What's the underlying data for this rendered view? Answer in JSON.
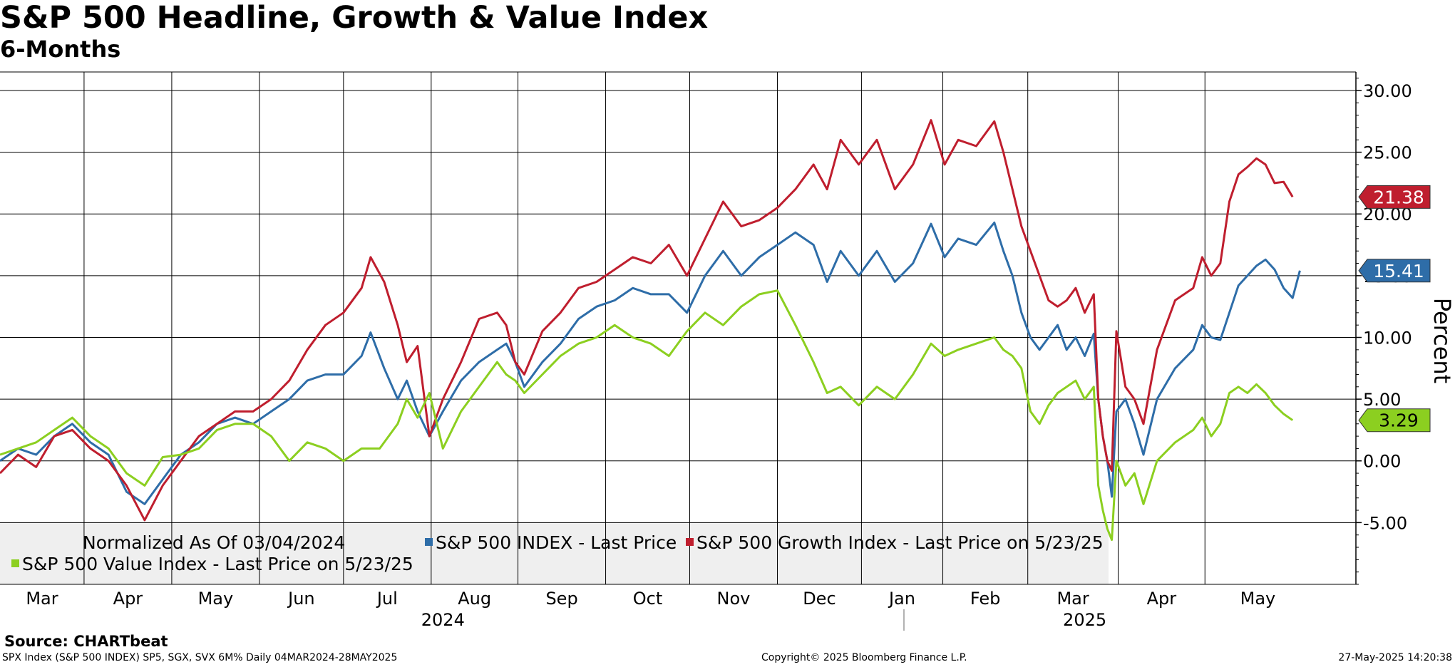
{
  "header": {
    "title": "S&P 500 Headline, Growth & Value Index",
    "subtitle": "6-Months"
  },
  "chart_data": {
    "type": "line",
    "ylabel": "Percent",
    "ylim": [
      -10,
      31.5
    ],
    "y_ticks": [
      30,
      25,
      20,
      15,
      10,
      5,
      0,
      -5
    ],
    "y_tick_labels": [
      "30.00",
      "25.00",
      "20.00",
      "15.00",
      "10.00",
      "5.00",
      "0.00",
      "-5.00"
    ],
    "grid": true,
    "x_range": [
      0,
      15
    ],
    "months": [
      {
        "label": "Mar",
        "start": 0
      },
      {
        "label": "Apr",
        "start": 0.93
      },
      {
        "label": "May",
        "start": 1.9
      },
      {
        "label": "Jun",
        "start": 2.87
      },
      {
        "label": "Jul",
        "start": 3.8
      },
      {
        "label": "Aug",
        "start": 4.77
      },
      {
        "label": "Sep",
        "start": 5.73
      },
      {
        "label": "Oct",
        "start": 6.7
      },
      {
        "label": "Nov",
        "start": 7.63
      },
      {
        "label": "Dec",
        "start": 8.6
      },
      {
        "label": "Jan",
        "start": 9.53
      },
      {
        "label": "Feb",
        "start": 10.43
      },
      {
        "label": "Mar",
        "start": 11.37
      },
      {
        "label": "Apr",
        "start": 12.37
      },
      {
        "label": "May",
        "start": 13.33
      }
    ],
    "years": [
      {
        "label": "2024",
        "x": 4.9
      },
      {
        "label": "2025",
        "x": 12.0
      }
    ],
    "year_divider_x": 10.0,
    "legend": {
      "note": "Normalized As Of 03/04/2024",
      "placement": "bottom-left"
    },
    "series": [
      {
        "name": "S&P 500 INDEX - Last Price",
        "color": "#2e6da8",
        "last_label": "15.41",
        "points": [
          [
            0,
            0
          ],
          [
            0.2,
            1
          ],
          [
            0.4,
            0.5
          ],
          [
            0.6,
            2
          ],
          [
            0.8,
            3
          ],
          [
            1.0,
            1.5
          ],
          [
            1.2,
            0.5
          ],
          [
            1.4,
            -2.5
          ],
          [
            1.6,
            -3.5
          ],
          [
            1.8,
            -1.5
          ],
          [
            2.0,
            0.5
          ],
          [
            2.2,
            1.5
          ],
          [
            2.4,
            3
          ],
          [
            2.6,
            3.5
          ],
          [
            2.8,
            3
          ],
          [
            3.0,
            4
          ],
          [
            3.2,
            5
          ],
          [
            3.4,
            6.5
          ],
          [
            3.6,
            7
          ],
          [
            3.8,
            7
          ],
          [
            4.0,
            8.5
          ],
          [
            4.1,
            10.4
          ],
          [
            4.25,
            7.5
          ],
          [
            4.4,
            5
          ],
          [
            4.5,
            6.5
          ],
          [
            4.62,
            4
          ],
          [
            4.75,
            2
          ],
          [
            4.9,
            4
          ],
          [
            5.1,
            6.5
          ],
          [
            5.3,
            8
          ],
          [
            5.5,
            9
          ],
          [
            5.6,
            9.5
          ],
          [
            5.7,
            8
          ],
          [
            5.8,
            6
          ],
          [
            6.0,
            8
          ],
          [
            6.2,
            9.5
          ],
          [
            6.4,
            11.5
          ],
          [
            6.6,
            12.5
          ],
          [
            6.8,
            13
          ],
          [
            7.0,
            14
          ],
          [
            7.2,
            13.5
          ],
          [
            7.4,
            13.5
          ],
          [
            7.6,
            12
          ],
          [
            7.8,
            15
          ],
          [
            8.0,
            17
          ],
          [
            8.2,
            15
          ],
          [
            8.4,
            16.5
          ],
          [
            8.6,
            17.5
          ],
          [
            8.8,
            18.5
          ],
          [
            9.0,
            17.5
          ],
          [
            9.15,
            14.5
          ],
          [
            9.3,
            17
          ],
          [
            9.5,
            15
          ],
          [
            9.7,
            17
          ],
          [
            9.9,
            14.5
          ],
          [
            10.1,
            16
          ],
          [
            10.3,
            19.2
          ],
          [
            10.45,
            16.5
          ],
          [
            10.6,
            18
          ],
          [
            10.8,
            17.5
          ],
          [
            11.0,
            19.3
          ],
          [
            11.1,
            17
          ],
          [
            11.2,
            15
          ],
          [
            11.3,
            12
          ],
          [
            11.4,
            10
          ],
          [
            11.5,
            9
          ],
          [
            11.6,
            10
          ],
          [
            11.7,
            11
          ],
          [
            11.8,
            9
          ],
          [
            11.9,
            10
          ],
          [
            12.0,
            8.5
          ],
          [
            12.1,
            10.3
          ],
          [
            12.15,
            5
          ],
          [
            12.2,
            2
          ],
          [
            12.25,
            0
          ],
          [
            12.3,
            -2.9
          ],
          [
            12.35,
            4
          ],
          [
            12.45,
            5
          ],
          [
            12.55,
            3
          ],
          [
            12.65,
            0.5
          ],
          [
            12.8,
            5
          ],
          [
            13.0,
            7.5
          ],
          [
            13.2,
            9
          ],
          [
            13.3,
            11
          ],
          [
            13.4,
            10
          ],
          [
            13.5,
            9.8
          ],
          [
            13.6,
            12
          ],
          [
            13.7,
            14.2
          ],
          [
            13.8,
            15
          ],
          [
            13.9,
            15.8
          ],
          [
            14.0,
            16.3
          ],
          [
            14.1,
            15.5
          ],
          [
            14.2,
            14
          ],
          [
            14.3,
            13.2
          ],
          [
            14.38,
            15.41
          ]
        ]
      },
      {
        "name": "S&P 500 Growth Index - Last Price on 5/23/25",
        "color": "#bf1e2e",
        "last_label": "21.38",
        "points": [
          [
            0,
            -1
          ],
          [
            0.2,
            0.5
          ],
          [
            0.4,
            -0.5
          ],
          [
            0.6,
            2
          ],
          [
            0.8,
            2.5
          ],
          [
            1.0,
            1
          ],
          [
            1.2,
            0
          ],
          [
            1.4,
            -2
          ],
          [
            1.6,
            -4.8
          ],
          [
            1.8,
            -2
          ],
          [
            2.0,
            0
          ],
          [
            2.2,
            2
          ],
          [
            2.4,
            3
          ],
          [
            2.6,
            4
          ],
          [
            2.8,
            4
          ],
          [
            3.0,
            5
          ],
          [
            3.2,
            6.5
          ],
          [
            3.4,
            9
          ],
          [
            3.6,
            11
          ],
          [
            3.8,
            12
          ],
          [
            4.0,
            14
          ],
          [
            4.1,
            16.5
          ],
          [
            4.25,
            14.5
          ],
          [
            4.4,
            11
          ],
          [
            4.5,
            8
          ],
          [
            4.62,
            9.3
          ],
          [
            4.75,
            2
          ],
          [
            4.9,
            5
          ],
          [
            5.1,
            8
          ],
          [
            5.3,
            11.5
          ],
          [
            5.5,
            12
          ],
          [
            5.6,
            11
          ],
          [
            5.7,
            8
          ],
          [
            5.8,
            7
          ],
          [
            6.0,
            10.5
          ],
          [
            6.2,
            12
          ],
          [
            6.4,
            14
          ],
          [
            6.6,
            14.5
          ],
          [
            6.8,
            15.5
          ],
          [
            7.0,
            16.5
          ],
          [
            7.2,
            16
          ],
          [
            7.4,
            17.5
          ],
          [
            7.6,
            15
          ],
          [
            7.8,
            18
          ],
          [
            8.0,
            21
          ],
          [
            8.2,
            19
          ],
          [
            8.4,
            19.5
          ],
          [
            8.6,
            20.5
          ],
          [
            8.8,
            22
          ],
          [
            9.0,
            24
          ],
          [
            9.15,
            22
          ],
          [
            9.3,
            26
          ],
          [
            9.5,
            24
          ],
          [
            9.7,
            26
          ],
          [
            9.9,
            22
          ],
          [
            10.1,
            24
          ],
          [
            10.3,
            27.6
          ],
          [
            10.45,
            24
          ],
          [
            10.6,
            26
          ],
          [
            10.8,
            25.5
          ],
          [
            11.0,
            27.5
          ],
          [
            11.1,
            25
          ],
          [
            11.2,
            22
          ],
          [
            11.3,
            19
          ],
          [
            11.4,
            17
          ],
          [
            11.5,
            15
          ],
          [
            11.6,
            13
          ],
          [
            11.7,
            12.5
          ],
          [
            11.8,
            13
          ],
          [
            11.9,
            14
          ],
          [
            12.0,
            12
          ],
          [
            12.1,
            13.5
          ],
          [
            12.15,
            5
          ],
          [
            12.2,
            2
          ],
          [
            12.25,
            0
          ],
          [
            12.3,
            -0.8
          ],
          [
            12.35,
            10.5
          ],
          [
            12.45,
            6
          ],
          [
            12.55,
            5
          ],
          [
            12.65,
            3
          ],
          [
            12.8,
            9
          ],
          [
            13.0,
            13
          ],
          [
            13.2,
            14
          ],
          [
            13.3,
            16.5
          ],
          [
            13.4,
            15
          ],
          [
            13.5,
            16
          ],
          [
            13.6,
            21
          ],
          [
            13.7,
            23.2
          ],
          [
            13.8,
            23.8
          ],
          [
            13.9,
            24.5
          ],
          [
            14.0,
            24
          ],
          [
            14.1,
            22.5
          ],
          [
            14.2,
            22.6
          ],
          [
            14.3,
            21.38
          ]
        ]
      },
      {
        "name": "S&P 500 Value Index - Last Price on 5/23/25",
        "color": "#8ccf20",
        "last_label": "3.29",
        "points": [
          [
            0,
            0.5
          ],
          [
            0.2,
            1
          ],
          [
            0.4,
            1.5
          ],
          [
            0.6,
            2.5
          ],
          [
            0.8,
            3.5
          ],
          [
            1.0,
            2
          ],
          [
            1.2,
            1
          ],
          [
            1.4,
            -1
          ],
          [
            1.6,
            -2
          ],
          [
            1.8,
            0.3
          ],
          [
            2.0,
            0.5
          ],
          [
            2.2,
            1
          ],
          [
            2.4,
            2.5
          ],
          [
            2.6,
            3
          ],
          [
            2.8,
            3
          ],
          [
            3.0,
            2
          ],
          [
            3.2,
            0
          ],
          [
            3.4,
            1.5
          ],
          [
            3.6,
            1
          ],
          [
            3.8,
            0
          ],
          [
            4.0,
            1
          ],
          [
            4.2,
            1
          ],
          [
            4.4,
            3
          ],
          [
            4.5,
            5
          ],
          [
            4.62,
            3.5
          ],
          [
            4.75,
            5.5
          ],
          [
            4.9,
            1
          ],
          [
            5.1,
            4
          ],
          [
            5.3,
            6
          ],
          [
            5.5,
            8
          ],
          [
            5.6,
            7
          ],
          [
            5.7,
            6.5
          ],
          [
            5.8,
            5.5
          ],
          [
            6.0,
            7
          ],
          [
            6.2,
            8.5
          ],
          [
            6.4,
            9.5
          ],
          [
            6.6,
            10
          ],
          [
            6.8,
            11
          ],
          [
            7.0,
            10
          ],
          [
            7.2,
            9.5
          ],
          [
            7.4,
            8.5
          ],
          [
            7.6,
            10.5
          ],
          [
            7.8,
            12
          ],
          [
            8.0,
            11
          ],
          [
            8.2,
            12.5
          ],
          [
            8.4,
            13.5
          ],
          [
            8.6,
            13.8
          ],
          [
            8.8,
            11
          ],
          [
            9.0,
            8
          ],
          [
            9.15,
            5.5
          ],
          [
            9.3,
            6
          ],
          [
            9.5,
            4.5
          ],
          [
            9.7,
            6
          ],
          [
            9.9,
            5
          ],
          [
            10.1,
            7
          ],
          [
            10.3,
            9.5
          ],
          [
            10.45,
            8.5
          ],
          [
            10.6,
            9
          ],
          [
            10.8,
            9.5
          ],
          [
            11.0,
            10
          ],
          [
            11.1,
            9
          ],
          [
            11.2,
            8.5
          ],
          [
            11.3,
            7.5
          ],
          [
            11.4,
            4
          ],
          [
            11.5,
            3
          ],
          [
            11.6,
            4.5
          ],
          [
            11.7,
            5.5
          ],
          [
            11.8,
            6
          ],
          [
            11.9,
            6.5
          ],
          [
            12.0,
            5
          ],
          [
            12.1,
            6
          ],
          [
            12.15,
            -2
          ],
          [
            12.2,
            -4
          ],
          [
            12.25,
            -5.5
          ],
          [
            12.3,
            -6.4
          ],
          [
            12.35,
            0
          ],
          [
            12.45,
            -2
          ],
          [
            12.55,
            -1
          ],
          [
            12.65,
            -3.5
          ],
          [
            12.8,
            0
          ],
          [
            13.0,
            1.5
          ],
          [
            13.2,
            2.5
          ],
          [
            13.3,
            3.5
          ],
          [
            13.4,
            2
          ],
          [
            13.5,
            3
          ],
          [
            13.6,
            5.5
          ],
          [
            13.7,
            6
          ],
          [
            13.8,
            5.5
          ],
          [
            13.9,
            6.2
          ],
          [
            14.0,
            5.5
          ],
          [
            14.1,
            4.5
          ],
          [
            14.2,
            3.8
          ],
          [
            14.3,
            3.29
          ]
        ]
      }
    ]
  },
  "footer": {
    "source": "Source: CHARTbeat",
    "left_note": "SPX Index (S&P 500 INDEX) SP5, SGX, SVX 6M%  Daily 04MAR2024-28MAY2025",
    "center_note": "Copyright© 2025 Bloomberg Finance L.P.",
    "right_note": "27-May-2025 14:20:38"
  }
}
